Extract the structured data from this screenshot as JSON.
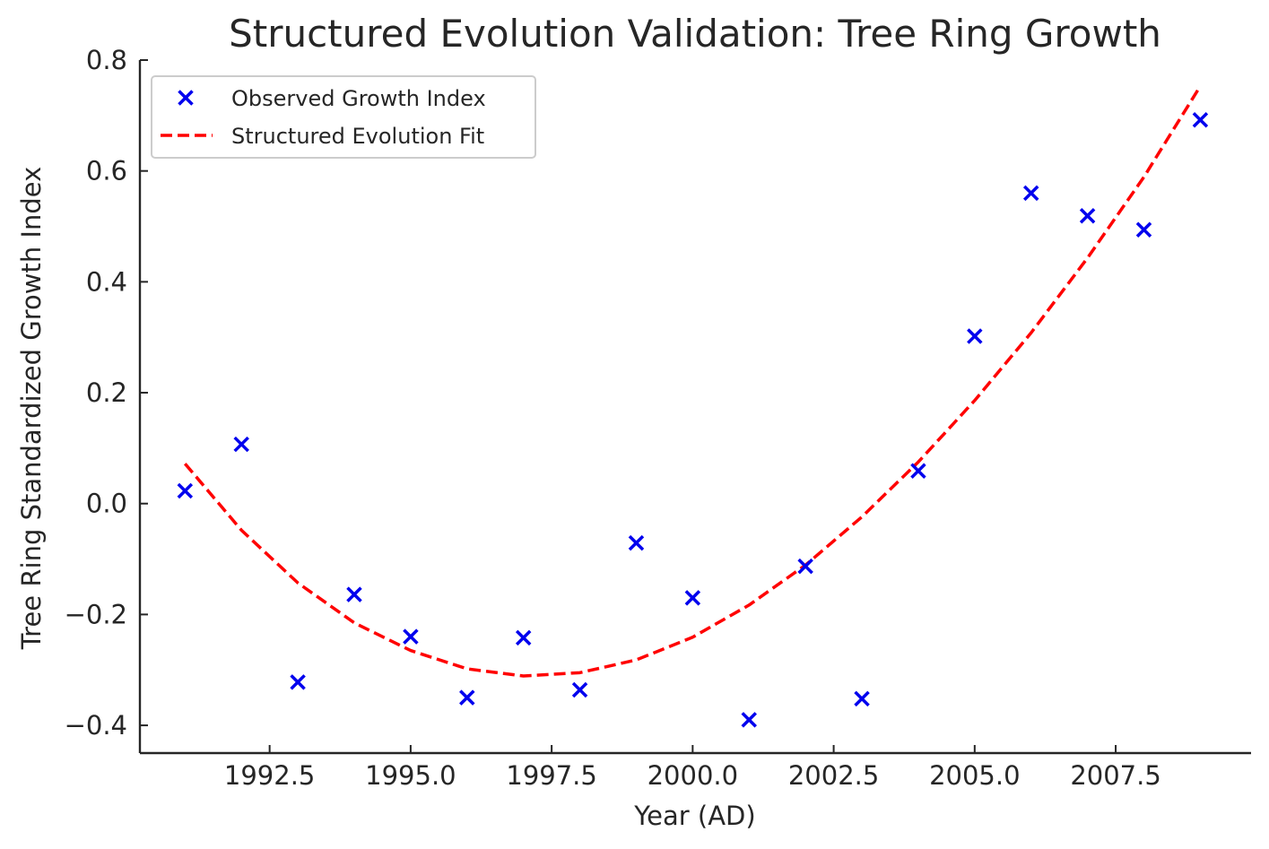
{
  "chart_data": {
    "type": "scatter",
    "title": "Structured Evolution Validation: Tree Ring Growth",
    "xlabel": "Year (AD)",
    "ylabel": "Tree Ring Standardized Growth Index",
    "xlim": [
      1990.2,
      2009.9
    ],
    "ylim": [
      -0.45,
      0.8
    ],
    "x_ticks": [
      1992.5,
      1995.0,
      1997.5,
      2000.0,
      2002.5,
      2005.0,
      2007.5
    ],
    "x_tick_labels": [
      "1992.5",
      "1995.0",
      "1997.5",
      "2000.0",
      "2002.5",
      "2005.0",
      "2007.5"
    ],
    "y_ticks": [
      -0.4,
      -0.2,
      0.0,
      0.2,
      0.4,
      0.6,
      0.8
    ],
    "y_tick_labels": [
      "−0.4",
      "−0.2",
      "0.0",
      "0.2",
      "0.4",
      "0.6",
      "0.8"
    ],
    "grid": false,
    "legend_position": "top-left",
    "series": [
      {
        "name": "Observed Growth Index",
        "type": "scatter",
        "marker": "x",
        "color": "#0000ee",
        "x": [
          1991,
          1992,
          1993,
          1994,
          1995,
          1996,
          1997,
          1998,
          1999,
          2000,
          2001,
          2002,
          2003,
          2004,
          2005,
          2006,
          2007,
          2008,
          2009
        ],
        "y": [
          0.023,
          0.107,
          -0.322,
          -0.164,
          -0.24,
          -0.35,
          -0.242,
          -0.336,
          -0.071,
          -0.17,
          -0.39,
          -0.113,
          -0.352,
          0.059,
          0.302,
          0.56,
          0.519,
          0.494,
          0.692
        ]
      },
      {
        "name": "Structured Evolution Fit",
        "type": "line",
        "style": "dashed",
        "color": "#ff0000",
        "x": [
          1991,
          1992,
          1993,
          1994,
          1995,
          1996,
          1997,
          1998,
          1999,
          2000,
          2001,
          2002,
          2003,
          2004,
          2005,
          2006,
          2007,
          2008,
          2009
        ],
        "y": [
          0.072,
          -0.048,
          -0.143,
          -0.215,
          -0.265,
          -0.298,
          -0.311,
          -0.305,
          -0.282,
          -0.241,
          -0.183,
          -0.111,
          -0.024,
          0.075,
          0.186,
          0.308,
          0.443,
          0.589,
          0.753
        ]
      }
    ]
  }
}
